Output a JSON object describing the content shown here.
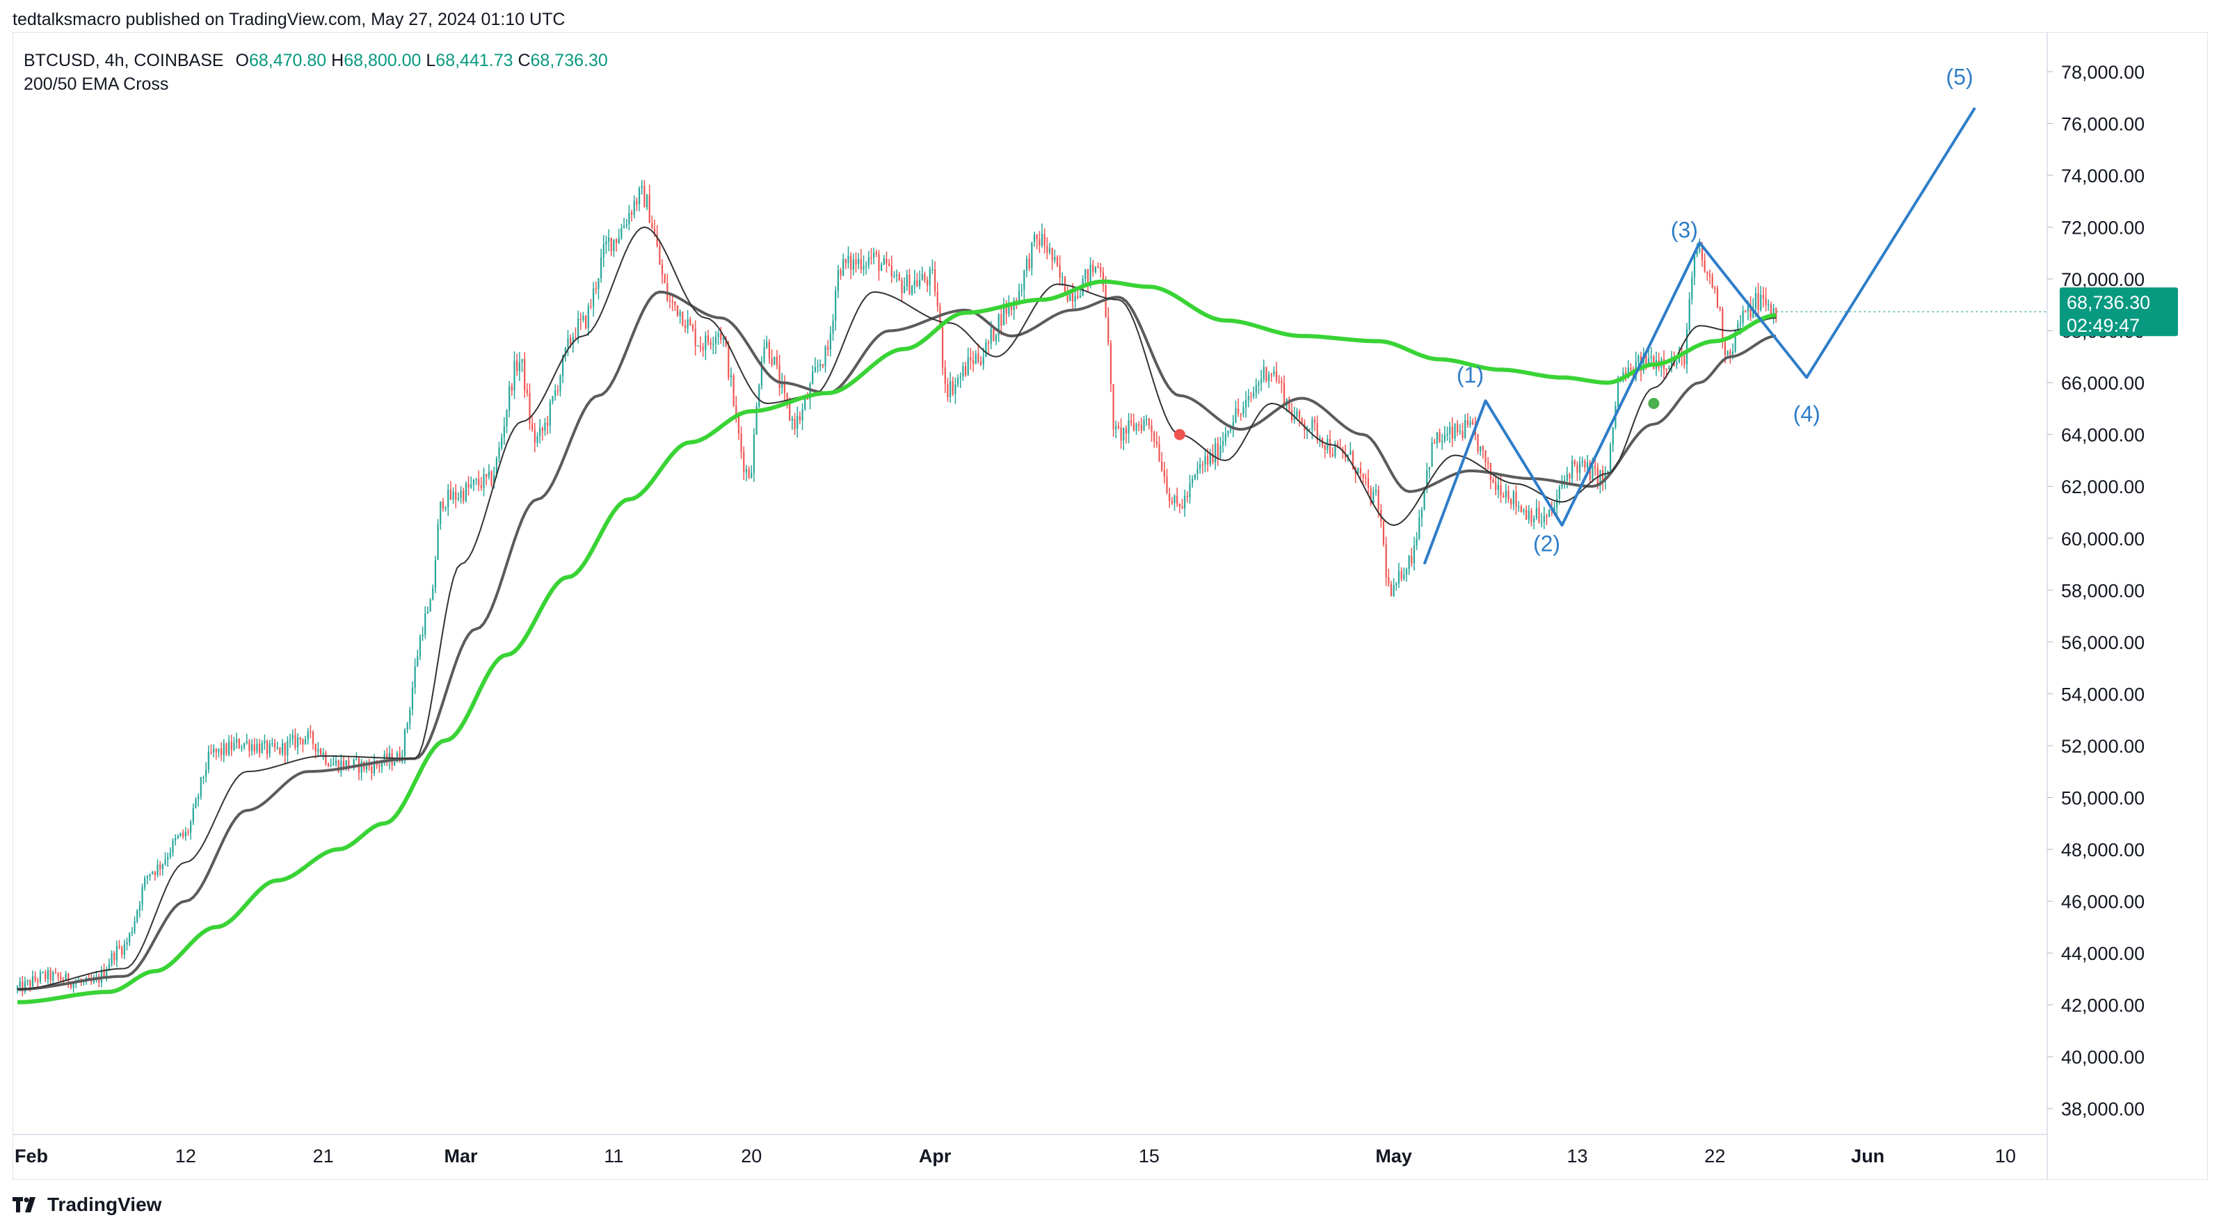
{
  "header": {
    "publish_line": "tedtalksmacro published on TradingView.com, May 27, 2024 01:10 UTC"
  },
  "legend": {
    "symbol_line": "BTCUSD, 4h, COINBASE",
    "open_label": "O",
    "open_value": "68,470.80",
    "high_label": "H",
    "high_value": "68,800.00",
    "low_label": "L",
    "low_value": "68,441.73",
    "close_label": "C",
    "close_value": "68,736.30",
    "indicator": "200/50 EMA Cross"
  },
  "price_tag": {
    "price": "68,736.30",
    "countdown": "02:49:47"
  },
  "footer": {
    "brand": "TradingView"
  },
  "colors": {
    "up_candle": "#26a69a",
    "down_candle": "#ef5350",
    "ema_long": "#39d335",
    "ema_mid": "#5b5b5b",
    "ema_short": "#333333",
    "wave": "#2e7dc8",
    "price_tag": "#089981",
    "axis_text": "#131722",
    "grid": "#e0e3eb"
  },
  "chart_data": {
    "type": "candlestick",
    "symbol": "BTCUSD",
    "timeframe": "4h",
    "exchange": "COINBASE",
    "ylim": [
      37000,
      79500
    ],
    "y_ticks": [
      38000,
      40000,
      42000,
      44000,
      46000,
      48000,
      50000,
      52000,
      54000,
      56000,
      58000,
      60000,
      62000,
      64000,
      66000,
      68000,
      70000,
      72000,
      74000,
      76000,
      78000
    ],
    "y_tick_labels": [
      "38,000.00",
      "40,000.00",
      "42,000.00",
      "44,000.00",
      "46,000.00",
      "48,000.00",
      "50,000.00",
      "52,000.00",
      "54,000.00",
      "56,000.00",
      "58,000.00",
      "60,000.00",
      "62,000.00",
      "64,000.00",
      "66,000.00",
      "68,000.00",
      "70,000.00",
      "72,000.00",
      "74,000.00",
      "76,000.00",
      "78,000.00"
    ],
    "x_range_days": [
      "2024-02-01",
      "2024-06-13"
    ],
    "x_ticks": [
      {
        "label": "Feb",
        "date": "2024-02-01",
        "month": true
      },
      {
        "label": "12",
        "date": "2024-02-12",
        "month": false
      },
      {
        "label": "21",
        "date": "2024-02-21",
        "month": false
      },
      {
        "label": "Mar",
        "date": "2024-03-01",
        "month": true
      },
      {
        "label": "11",
        "date": "2024-03-11",
        "month": false
      },
      {
        "label": "20",
        "date": "2024-03-20",
        "month": false
      },
      {
        "label": "Apr",
        "date": "2024-04-01",
        "month": true
      },
      {
        "label": "15",
        "date": "2024-04-15",
        "month": false
      },
      {
        "label": "May",
        "date": "2024-05-01",
        "month": true
      },
      {
        "label": "13",
        "date": "2024-05-13",
        "month": false
      },
      {
        "label": "22",
        "date": "2024-05-22",
        "month": false
      },
      {
        "label": "Jun",
        "date": "2024-06-01",
        "month": true
      },
      {
        "label": "10",
        "date": "2024-06-10",
        "month": false
      }
    ],
    "price_keypoints": [
      [
        "2024-02-01",
        42600
      ],
      [
        "2024-02-03",
        43100
      ],
      [
        "2024-02-06",
        42800
      ],
      [
        "2024-02-08",
        44200
      ],
      [
        "2024-02-10",
        47200
      ],
      [
        "2024-02-12",
        48500
      ],
      [
        "2024-02-14",
        51700
      ],
      [
        "2024-02-16",
        52100
      ],
      [
        "2024-02-18",
        51800
      ],
      [
        "2024-02-20",
        52300
      ],
      [
        "2024-02-22",
        51300
      ],
      [
        "2024-02-24",
        51200
      ],
      [
        "2024-02-26",
        51500
      ],
      [
        "2024-02-28",
        57000
      ],
      [
        "2024-02-29",
        61500
      ],
      [
        "2024-03-03",
        62200
      ],
      [
        "2024-03-05",
        66800
      ],
      [
        "2024-03-06",
        63800
      ],
      [
        "2024-03-09",
        68200
      ],
      [
        "2024-03-11",
        71500
      ],
      [
        "2024-03-13",
        73200
      ],
      [
        "2024-03-15",
        69000
      ],
      [
        "2024-03-17",
        67500
      ],
      [
        "2024-03-18",
        68000
      ],
      [
        "2024-03-20",
        62500
      ],
      [
        "2024-03-21",
        67500
      ],
      [
        "2024-03-23",
        64500
      ],
      [
        "2024-03-25",
        67000
      ],
      [
        "2024-03-26",
        70500
      ],
      [
        "2024-03-28",
        70800
      ],
      [
        "2024-03-30",
        69800
      ],
      [
        "2024-04-01",
        70000
      ],
      [
        "2024-04-02",
        65800
      ],
      [
        "2024-04-04",
        67000
      ],
      [
        "2024-04-06",
        68900
      ],
      [
        "2024-04-08",
        71500
      ],
      [
        "2024-04-10",
        69500
      ],
      [
        "2024-04-12",
        70500
      ],
      [
        "2024-04-13",
        64000
      ],
      [
        "2024-04-15",
        64500
      ],
      [
        "2024-04-17",
        61200
      ],
      [
        "2024-04-19",
        63000
      ],
      [
        "2024-04-21",
        64800
      ],
      [
        "2024-04-23",
        66500
      ],
      [
        "2024-04-25",
        64500
      ],
      [
        "2024-04-28",
        63200
      ],
      [
        "2024-04-30",
        61500
      ],
      [
        "2024-05-01",
        57800
      ],
      [
        "2024-05-02",
        59000
      ],
      [
        "2024-05-04",
        63800
      ],
      [
        "2024-05-06",
        64200
      ],
      [
        "2024-05-08",
        62000
      ],
      [
        "2024-05-10",
        61000
      ],
      [
        "2024-05-11",
        60700
      ],
      [
        "2024-05-13",
        62800
      ],
      [
        "2024-05-15",
        62300
      ],
      [
        "2024-05-16",
        66200
      ],
      [
        "2024-05-18",
        66900
      ],
      [
        "2024-05-20",
        66800
      ],
      [
        "2024-05-21",
        71000
      ],
      [
        "2024-05-22",
        69800
      ],
      [
        "2024-05-23",
        67200
      ],
      [
        "2024-05-24",
        68500
      ],
      [
        "2024-05-25",
        69200
      ],
      [
        "2024-05-26",
        68736
      ]
    ],
    "ema_long_keypoints": [
      [
        "2024-02-01",
        42100
      ],
      [
        "2024-02-07",
        42500
      ],
      [
        "2024-02-10",
        43300
      ],
      [
        "2024-02-14",
        45000
      ],
      [
        "2024-02-18",
        46800
      ],
      [
        "2024-02-22",
        48000
      ],
      [
        "2024-02-25",
        49000
      ],
      [
        "2024-02-29",
        52200
      ],
      [
        "2024-03-04",
        55500
      ],
      [
        "2024-03-08",
        58500
      ],
      [
        "2024-03-12",
        61500
      ],
      [
        "2024-03-16",
        63700
      ],
      [
        "2024-03-20",
        64900
      ],
      [
        "2024-03-25",
        65600
      ],
      [
        "2024-03-30",
        67300
      ],
      [
        "2024-04-03",
        68700
      ],
      [
        "2024-04-08",
        69200
      ],
      [
        "2024-04-12",
        69900
      ],
      [
        "2024-04-15",
        69700
      ],
      [
        "2024-04-20",
        68400
      ],
      [
        "2024-04-25",
        67800
      ],
      [
        "2024-04-30",
        67600
      ],
      [
        "2024-05-04",
        66900
      ],
      [
        "2024-05-08",
        66500
      ],
      [
        "2024-05-12",
        66200
      ],
      [
        "2024-05-15",
        66000
      ],
      [
        "2024-05-18",
        66700
      ],
      [
        "2024-05-22",
        67600
      ],
      [
        "2024-05-26",
        68600
      ]
    ],
    "ema_mid_keypoints": [
      [
        "2024-02-01",
        42600
      ],
      [
        "2024-02-08",
        43100
      ],
      [
        "2024-02-12",
        46000
      ],
      [
        "2024-02-16",
        49500
      ],
      [
        "2024-02-20",
        51000
      ],
      [
        "2024-02-27",
        51500
      ],
      [
        "2024-03-02",
        56500
      ],
      [
        "2024-03-06",
        61500
      ],
      [
        "2024-03-10",
        65500
      ],
      [
        "2024-03-14",
        69500
      ],
      [
        "2024-03-18",
        68500
      ],
      [
        "2024-03-22",
        66000
      ],
      [
        "2024-03-25",
        65600
      ],
      [
        "2024-03-29",
        68000
      ],
      [
        "2024-04-03",
        68800
      ],
      [
        "2024-04-06",
        67800
      ],
      [
        "2024-04-10",
        68800
      ],
      [
        "2024-04-13",
        69300
      ],
      [
        "2024-04-17",
        65500
      ],
      [
        "2024-04-21",
        64200
      ],
      [
        "2024-04-25",
        65400
      ],
      [
        "2024-04-29",
        64000
      ],
      [
        "2024-05-02",
        61800
      ],
      [
        "2024-05-06",
        62600
      ],
      [
        "2024-05-10",
        62300
      ],
      [
        "2024-05-14",
        62000
      ],
      [
        "2024-05-18",
        64400
      ],
      [
        "2024-05-21",
        66000
      ],
      [
        "2024-05-23",
        67000
      ],
      [
        "2024-05-26",
        67800
      ]
    ],
    "ema_short_keypoints": [
      [
        "2024-02-01",
        42600
      ],
      [
        "2024-02-08",
        43400
      ],
      [
        "2024-02-12",
        47500
      ],
      [
        "2024-02-16",
        51000
      ],
      [
        "2024-02-21",
        51600
      ],
      [
        "2024-02-27",
        51500
      ],
      [
        "2024-03-01",
        59000
      ],
      [
        "2024-03-05",
        64500
      ],
      [
        "2024-03-09",
        67800
      ],
      [
        "2024-03-13",
        72000
      ],
      [
        "2024-03-17",
        68500
      ],
      [
        "2024-03-21",
        65200
      ],
      [
        "2024-03-24",
        65500
      ],
      [
        "2024-03-28",
        69500
      ],
      [
        "2024-04-02",
        68300
      ],
      [
        "2024-04-05",
        67000
      ],
      [
        "2024-04-09",
        69800
      ],
      [
        "2024-04-13",
        69200
      ],
      [
        "2024-04-17",
        64000
      ],
      [
        "2024-04-20",
        63000
      ],
      [
        "2024-04-23",
        65200
      ],
      [
        "2024-04-27",
        63600
      ],
      [
        "2024-05-01",
        60500
      ],
      [
        "2024-05-05",
        63200
      ],
      [
        "2024-05-09",
        62100
      ],
      [
        "2024-05-12",
        61400
      ],
      [
        "2024-05-15",
        62500
      ],
      [
        "2024-05-18",
        65800
      ],
      [
        "2024-05-21",
        68200
      ],
      [
        "2024-05-23",
        68000
      ],
      [
        "2024-05-26",
        68500
      ]
    ],
    "wave_path": [
      [
        "2024-05-03",
        59000
      ],
      [
        "2024-05-07",
        65300
      ],
      [
        "2024-05-12",
        60500
      ],
      [
        "2024-05-21",
        71400
      ],
      [
        "2024-05-28",
        66200
      ],
      [
        "2024-06-08",
        76600
      ]
    ],
    "wave_labels": [
      {
        "text": "(1)",
        "date": "2024-05-06",
        "price": 66000
      },
      {
        "text": "(2)",
        "date": "2024-05-11",
        "price": 59500
      },
      {
        "text": "(3)",
        "date": "2024-05-20",
        "price": 71600
      },
      {
        "text": "(4)",
        "date": "2024-05-28",
        "price": 64500
      },
      {
        "text": "(5)",
        "date": "2024-06-07",
        "price": 77500
      }
    ],
    "signals": [
      {
        "type": "death-cross",
        "date": "2024-04-17",
        "price": 64000,
        "color": "#ef5350"
      },
      {
        "type": "golden-cross",
        "date": "2024-05-18",
        "price": 65200,
        "color": "#4caf50"
      }
    ],
    "last_price": 68736.3
  }
}
